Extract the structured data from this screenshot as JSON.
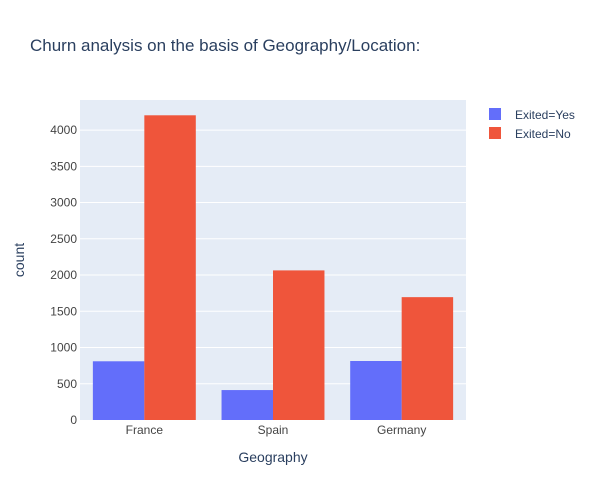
{
  "chart_data": {
    "type": "bar",
    "title": "Churn analysis on the basis of Geography/Location:",
    "xlabel": "Geography",
    "ylabel": "count",
    "categories": [
      "France",
      "Spain",
      "Germany"
    ],
    "series": [
      {
        "name": "Exited=Yes",
        "values": [
          810,
          413,
          814
        ],
        "color": "#636efa"
      },
      {
        "name": "Exited=No",
        "values": [
          4204,
          2064,
          1695
        ],
        "color": "#ef553b"
      }
    ],
    "ylim": [
      0,
      4415
    ],
    "yticks": [
      0,
      500,
      1000,
      1500,
      2000,
      2500,
      3000,
      3500,
      4000
    ],
    "grid": true,
    "legend_position": "top-right",
    "plot_background": "#e5ecf6",
    "text_color": "#2a3f5f",
    "tick_color": "#444444"
  }
}
